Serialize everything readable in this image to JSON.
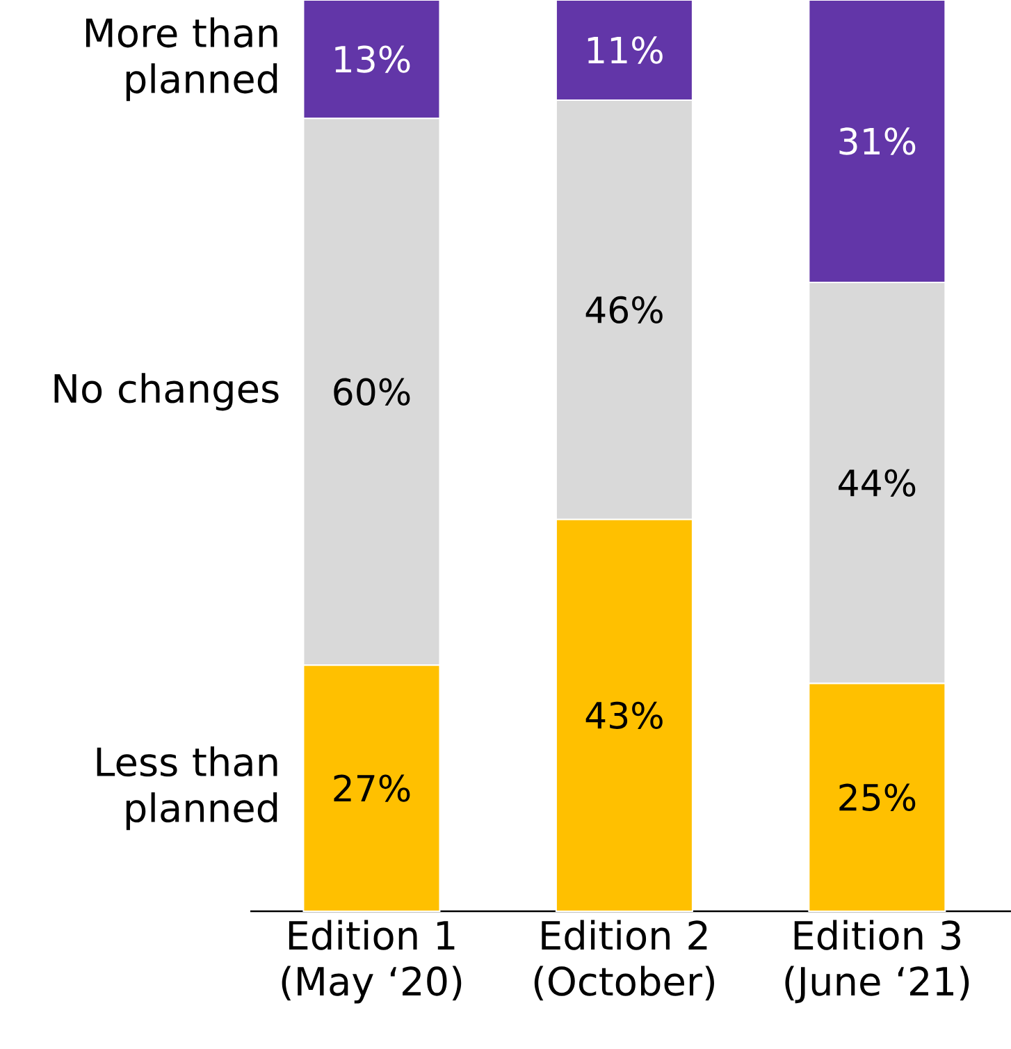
{
  "chart_data": {
    "type": "bar",
    "stacked": true,
    "categories": [
      "Edition 1 (May ‘20)",
      "Edition 2 (October)",
      "Edition 3 (June ‘21)"
    ],
    "series": [
      {
        "name": "Less than planned",
        "color": "#ffc000",
        "values": [
          27,
          43,
          25
        ],
        "value_labels": [
          "27%",
          "43%",
          "25%"
        ]
      },
      {
        "name": "No changes",
        "color": "#d9d9d9",
        "values": [
          60,
          46,
          44
        ],
        "value_labels": [
          "60%",
          "46%",
          "44%"
        ]
      },
      {
        "name": "More than planned",
        "color": "#6236a8",
        "values": [
          13,
          11,
          31
        ],
        "value_labels": [
          "13%",
          "11%",
          "31%"
        ]
      }
    ],
    "ylim": [
      0,
      100
    ],
    "tick_labels": "x"
  }
}
